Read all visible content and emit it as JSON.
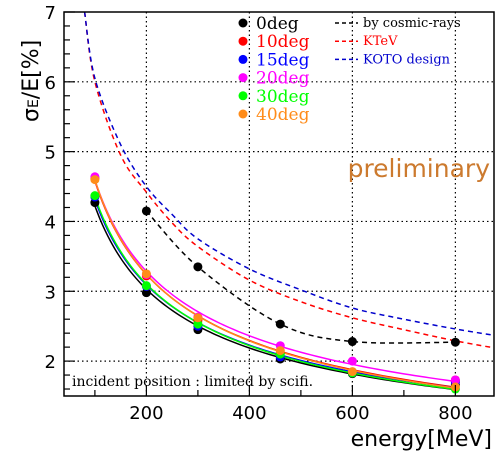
{
  "chart_data": {
    "type": "line",
    "title": "",
    "xlabel": "energy[MeV]",
    "ylabel_main": "σ",
    "ylabel_sub": "E",
    "ylabel_rest": "/E[%]",
    "xlim": [
      40,
      875
    ],
    "ylim": [
      1.5,
      7
    ],
    "x_ticks": [
      200,
      400,
      600,
      800
    ],
    "y_ticks": [
      2,
      3,
      4,
      5,
      6,
      7
    ],
    "grid": true,
    "legend_placement": "top-right",
    "series": [
      {
        "name": "0deg",
        "color": "#000000",
        "x": [
          100,
          200,
          300,
          460,
          600,
          800
        ],
        "y": [
          4.27,
          2.98,
          2.45,
          2.03,
          1.82,
          1.66
        ]
      },
      {
        "name": "10deg",
        "color": "#ff0000",
        "x": [
          100,
          200,
          300,
          460,
          600,
          800
        ],
        "y": [
          4.62,
          3.22,
          2.58,
          2.12,
          1.84,
          1.73
        ]
      },
      {
        "name": "15deg",
        "color": "#0000ff",
        "x": [
          100,
          200,
          300,
          460,
          600,
          800
        ],
        "y": [
          4.35,
          3.07,
          2.5,
          2.06,
          1.83,
          1.7
        ]
      },
      {
        "name": "20deg",
        "color": "#ff00ff",
        "x": [
          100,
          200,
          300,
          460,
          600,
          800
        ],
        "y": [
          4.64,
          3.24,
          2.63,
          2.22,
          2.0,
          1.73
        ]
      },
      {
        "name": "30deg",
        "color": "#00ff00",
        "x": [
          100,
          200,
          300,
          460,
          600,
          800
        ],
        "y": [
          4.37,
          3.08,
          2.53,
          2.1,
          1.83,
          1.6
        ]
      },
      {
        "name": "40deg",
        "color": "#ff8c1a",
        "x": [
          100,
          200,
          300,
          460,
          600,
          800
        ],
        "y": [
          4.6,
          3.25,
          2.62,
          2.15,
          1.85,
          1.63
        ]
      }
    ],
    "reference_curves": [
      {
        "name": "by cosmic-rays",
        "color": "#000000",
        "x": [
          200,
          300,
          460,
          600,
          800
        ],
        "y": [
          4.15,
          3.35,
          2.53,
          2.28,
          2.27
        ]
      },
      {
        "name": "KTeV",
        "color": "#ff0000",
        "x": [
          80,
          100,
          150,
          200,
          250,
          300,
          400,
          500,
          600,
          700,
          800,
          875
        ],
        "y": [
          7.0,
          6.0,
          4.95,
          4.42,
          3.98,
          3.64,
          3.16,
          2.85,
          2.62,
          2.45,
          2.29,
          2.19
        ]
      },
      {
        "name": "KOTO design",
        "color": "#0000cc",
        "x": [
          80,
          100,
          150,
          200,
          250,
          300,
          400,
          500,
          600,
          700,
          800,
          875
        ],
        "y": [
          7.0,
          6.05,
          5.1,
          4.5,
          4.1,
          3.75,
          3.32,
          3.02,
          2.76,
          2.6,
          2.46,
          2.37
        ]
      }
    ],
    "annotations": {
      "preliminary": "preliminary",
      "preliminary_color": "#cc7a2e",
      "note": "incident position : limited by scifi."
    }
  }
}
